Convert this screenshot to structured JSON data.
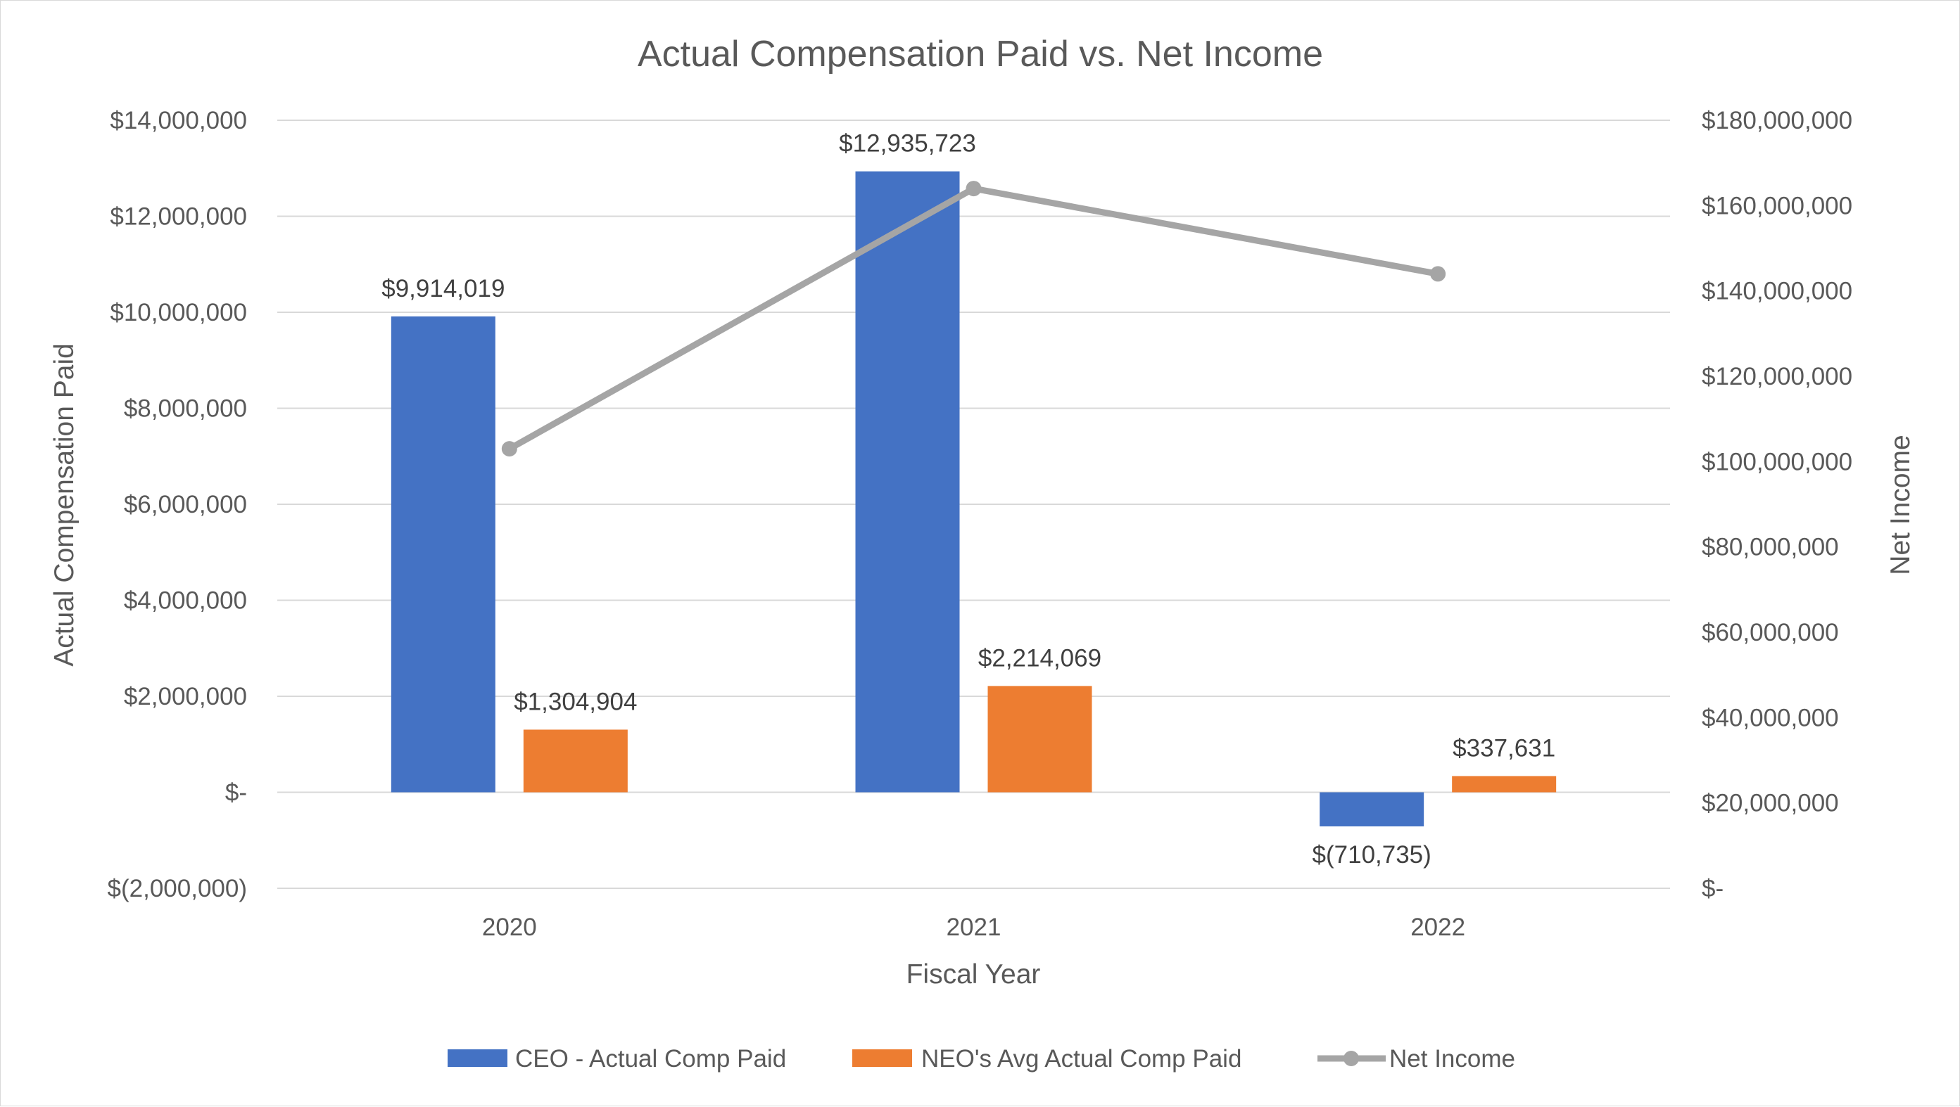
{
  "chart_data": {
    "type": "bar",
    "title": "Actual Compensation Paid vs. Net Income",
    "xlabel": "Fiscal Year",
    "ylabel": "Actual Compensation Paid",
    "y2label": "Net Income",
    "categories": [
      "2020",
      "2021",
      "2022"
    ],
    "ylim": [
      -2000000,
      14000000
    ],
    "y2lim": [
      0,
      180000000
    ],
    "y_ticks": [
      {
        "value": 14000000,
        "label": "$14,000,000"
      },
      {
        "value": 12000000,
        "label": "$12,000,000"
      },
      {
        "value": 10000000,
        "label": "$10,000,000"
      },
      {
        "value": 8000000,
        "label": "$8,000,000"
      },
      {
        "value": 6000000,
        "label": "$6,000,000"
      },
      {
        "value": 4000000,
        "label": "$4,000,000"
      },
      {
        "value": 2000000,
        "label": "$2,000,000"
      },
      {
        "value": 0,
        "label": "$-"
      },
      {
        "value": -2000000,
        "label": "$(2,000,000)"
      }
    ],
    "y2_ticks": [
      {
        "value": 180000000,
        "label": "$180,000,000"
      },
      {
        "value": 160000000,
        "label": "$160,000,000"
      },
      {
        "value": 140000000,
        "label": "$140,000,000"
      },
      {
        "value": 120000000,
        "label": "$120,000,000"
      },
      {
        "value": 100000000,
        "label": "$100,000,000"
      },
      {
        "value": 80000000,
        "label": "$80,000,000"
      },
      {
        "value": 60000000,
        "label": "$60,000,000"
      },
      {
        "value": 40000000,
        "label": "$40,000,000"
      },
      {
        "value": 20000000,
        "label": "$20,000,000"
      },
      {
        "value": 0,
        "label": "$-"
      }
    ],
    "grid": true,
    "legend_position": "bottom",
    "series": [
      {
        "name": "CEO - Actual Comp Paid",
        "type": "bar",
        "axis": "left",
        "color": "#4472c4",
        "values": [
          9914019,
          12935723,
          -710735
        ],
        "labels": [
          "$9,914,019",
          "$12,935,723",
          "$(710,735)"
        ]
      },
      {
        "name": "NEO's Avg Actual Comp Paid",
        "type": "bar",
        "axis": "left",
        "color": "#ed7d31",
        "values": [
          1304904,
          2214069,
          337631
        ],
        "labels": [
          "$1,304,904",
          "$2,214,069",
          "$337,631"
        ]
      },
      {
        "name": "Net Income",
        "type": "line",
        "axis": "right",
        "color": "#a5a5a5",
        "values": [
          103000000,
          164000000,
          144000000
        ]
      }
    ]
  }
}
